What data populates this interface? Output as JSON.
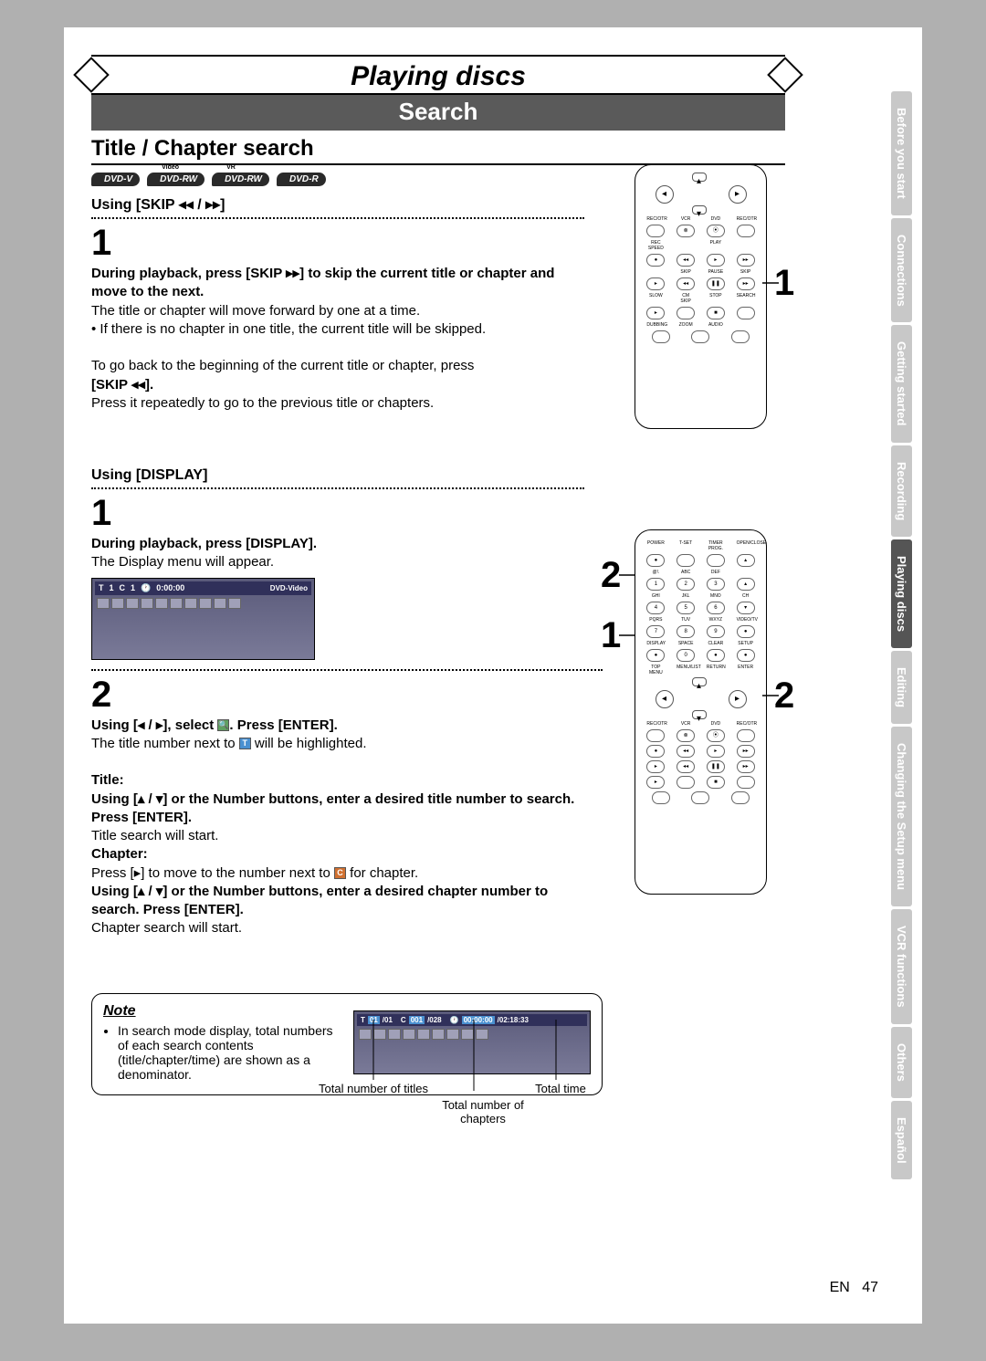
{
  "header": {
    "main_title": "Playing discs",
    "sub_title": "Search"
  },
  "section": {
    "title": "Title / Chapter search",
    "disc_types": [
      "DVD-V",
      "DVD-RW",
      "DVD-RW",
      "DVD-R"
    ],
    "disc_superscripts": [
      "",
      "Video",
      "VR",
      ""
    ]
  },
  "skip_section": {
    "using_label": "Using [SKIP ◂◂ / ▸▸]",
    "step1_num": "1",
    "step1_bold": "During playback, press [SKIP ▸▸] to skip the current title or chapter and move to the next.",
    "step1_line1": "The title or chapter will move forward by one at a time.",
    "step1_bullet": "• If there is no chapter in one title, the current title will be skipped.",
    "step1_para2": "To go back to the beginning of the current title or chapter, press",
    "step1_bold2": "[SKIP ◂◂].",
    "step1_line3": "Press it repeatedly to go to the previous title or chapters."
  },
  "display_section": {
    "using_label": "Using [DISPLAY]",
    "step1_num": "1",
    "step1_bold": "During playback, press [DISPLAY].",
    "step1_line": "The Display menu will appear.",
    "osd": {
      "t_label": "T",
      "t_val": "1",
      "c_label": "C",
      "c_val": "1",
      "time_icon": "🕐",
      "time": "0:00:00",
      "badge": "DVD-Video"
    },
    "step2_num": "2",
    "step2_line1a": "Using [◂ / ▸], select ",
    "step2_line1b": ". Press [ENTER].",
    "step2_line2a": "The title number next to ",
    "step2_line2b": " will be highlighted.",
    "title_label": "Title:",
    "title_bold": "Using [▴ / ▾] or the Number buttons, enter a desired title number to search. Press [ENTER].",
    "title_line": "Title search will start.",
    "chapter_label": "Chapter:",
    "chapter_line1a": "Press [▸] to move to the number next to ",
    "chapter_line1b": " for chapter.",
    "chapter_bold": "Using [▴ / ▾] or the Number buttons, enter a desired chapter number to search. Press [ENTER].",
    "chapter_line2": "Chapter search will start."
  },
  "note": {
    "title": "Note",
    "bullet": "In search mode display, total numbers of each search contents (title/chapter/time) are shown as a denominator.",
    "osd": {
      "t": "T",
      "t_cur": "01",
      "t_tot": "/01",
      "c": "C",
      "c_cur": "001",
      "c_tot": "/028",
      "time_cur": "00:00:00",
      "time_tot": "/02:18:33"
    },
    "label_titles": "Total number of titles",
    "label_chapters": "Total number of chapters",
    "label_time": "Total time"
  },
  "remote_labels": {
    "top_row": [
      "REC/OTR",
      "VCR",
      "DVD",
      "REC/OTR"
    ],
    "rec_speed": "REC SPEED",
    "play": "PLAY",
    "row2": [
      "",
      "SKIP",
      "PAUSE",
      "SKIP"
    ],
    "row3": [
      "SLOW",
      "CM SKIP",
      "STOP",
      "SEARCH"
    ],
    "row4": [
      "DUBBING",
      "ZOOM",
      "AUDIO",
      ""
    ],
    "num_top": [
      "POWER",
      "T-SET",
      "TIMER PROG.",
      "OPEN/CLOSE"
    ],
    "num_rows": [
      [
        "@!.",
        "ABC",
        "DEF",
        ""
      ],
      [
        "GHI",
        "JKL",
        "MNO",
        "CH"
      ],
      [
        "PQRS",
        "TUV",
        "WXYZ",
        "VIDEO/TV"
      ],
      [
        "DISPLAY",
        "SPACE",
        "CLEAR",
        "SETUP"
      ],
      [
        "TOP MENU",
        "MENU/LIST",
        "RETURN",
        "ENTER"
      ]
    ],
    "nums": [
      [
        "1",
        "2",
        "3",
        "▴"
      ],
      [
        "4",
        "5",
        "6",
        "▾"
      ],
      [
        "7",
        "8",
        "9",
        "●"
      ],
      [
        "●",
        "0",
        "●",
        "●"
      ]
    ]
  },
  "callouts": {
    "r1": "1",
    "r2_top": "2",
    "r2_mid": "1",
    "r2_bot": "2"
  },
  "tabs": [
    {
      "label": "Before you start",
      "active": false
    },
    {
      "label": "Connections",
      "active": false
    },
    {
      "label": "Getting started",
      "active": false
    },
    {
      "label": "Recording",
      "active": false
    },
    {
      "label": "Playing discs",
      "active": true
    },
    {
      "label": "Editing",
      "active": false
    },
    {
      "label": "Changing the Setup menu",
      "active": false
    },
    {
      "label": "VCR functions",
      "active": false
    },
    {
      "label": "Others",
      "active": false
    },
    {
      "label": "Español",
      "active": false
    }
  ],
  "footer": {
    "en": "EN",
    "page": "47"
  },
  "colors": {
    "banner_bg": "#5a5a5a",
    "tab_inactive": "#c8c8c8",
    "tab_active": "#555555",
    "osd_bg_top": "#5a5a7a",
    "osd_bg_bot": "#7a7a98"
  }
}
